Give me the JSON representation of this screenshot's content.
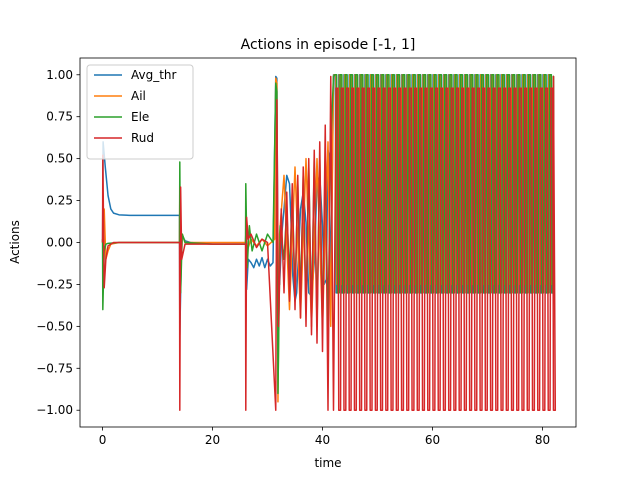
{
  "chart_data": {
    "type": "line",
    "title": "Actions in episode [-1, 1]",
    "xlabel": "time",
    "ylabel": "Actions",
    "xlim": [
      -4.1,
      86.1
    ],
    "ylim": [
      -1.1,
      1.1
    ],
    "x_ticks": [
      0,
      20,
      40,
      60,
      80
    ],
    "x_tick_labels": [
      "0",
      "20",
      "40",
      "60",
      "80"
    ],
    "y_ticks": [
      -1.0,
      -0.75,
      -0.5,
      -0.25,
      0.0,
      0.25,
      0.5,
      0.75,
      1.0
    ],
    "y_tick_labels": [
      "−1.00",
      "−0.75",
      "−0.50",
      "−0.25",
      "0.00",
      "0.25",
      "0.50",
      "0.75",
      "1.00"
    ],
    "grid": false,
    "legend_position": "top-left",
    "series": [
      {
        "name": "Avg_thr",
        "color": "#1f77b4",
        "points": [
          [
            0,
            0
          ],
          [
            0.1,
            0.6
          ],
          [
            0.5,
            0.45
          ],
          [
            1,
            0.28
          ],
          [
            1.5,
            0.2
          ],
          [
            2,
            0.175
          ],
          [
            3,
            0.165
          ],
          [
            5,
            0.162
          ],
          [
            8,
            0.162
          ],
          [
            11,
            0.162
          ],
          [
            14,
            0.162
          ],
          [
            14.05,
            -0.55
          ],
          [
            14.2,
            -0.3
          ],
          [
            14.4,
            0.05
          ],
          [
            15,
            0.01
          ],
          [
            16,
            0
          ],
          [
            20,
            -0.01
          ],
          [
            26,
            -0.01
          ],
          [
            26.05,
            0.05
          ],
          [
            26.2,
            -0.28
          ],
          [
            26.5,
            -0.1
          ],
          [
            27,
            -0.12
          ],
          [
            27.5,
            -0.15
          ],
          [
            28,
            -0.1
          ],
          [
            28.5,
            -0.14
          ],
          [
            29,
            -0.09
          ],
          [
            29.5,
            -0.15
          ],
          [
            30,
            -0.1
          ],
          [
            30.5,
            -0.14
          ],
          [
            31,
            -0.12
          ],
          [
            31.5,
            0.99
          ],
          [
            31.7,
            0.98
          ],
          [
            31.9,
            -0.2
          ],
          [
            32.2,
            -0.25
          ],
          [
            32.6,
            0.05
          ],
          [
            33,
            0.2
          ],
          [
            33.5,
            0.4
          ],
          [
            34,
            0.35
          ],
          [
            34.3,
            0.1
          ],
          [
            34.6,
            -0.2
          ],
          [
            35,
            -0.35
          ],
          [
            35.3,
            -0.3
          ],
          [
            35.6,
            -0.1
          ],
          [
            36,
            0.2
          ],
          [
            36.5,
            0.3
          ],
          [
            37,
            0.12
          ],
          [
            37.5,
            -0.3
          ],
          [
            38,
            -0.32
          ],
          [
            38.5,
            -0.12
          ],
          [
            39,
            0.35
          ],
          [
            39.5,
            0.4
          ],
          [
            40,
            0.1
          ],
          [
            40.3,
            -0.25
          ],
          [
            40.7,
            -0.22
          ],
          [
            41,
            0.55
          ],
          [
            41.2,
            0.52
          ],
          [
            41.5,
            -0.3
          ],
          [
            42,
            0.99
          ],
          [
            82,
            0.99
          ]
        ]
      },
      {
        "name": "Ail",
        "color": "#ff7f0e",
        "points": [
          [
            0,
            0
          ],
          [
            0.1,
            0.02
          ],
          [
            0.3,
            0.2
          ],
          [
            0.6,
            -0.1
          ],
          [
            1,
            -0.05
          ],
          [
            1.5,
            -0.01
          ],
          [
            3,
            0
          ],
          [
            14,
            0
          ],
          [
            14.05,
            0.3
          ],
          [
            14.2,
            -0.2
          ],
          [
            14.5,
            0.05
          ],
          [
            15,
            0
          ],
          [
            26,
            0
          ],
          [
            26.05,
            0.05
          ],
          [
            26.3,
            -0.05
          ],
          [
            27,
            0.02
          ],
          [
            28,
            -0.02
          ],
          [
            29,
            0.02
          ],
          [
            30,
            -0.02
          ],
          [
            31.3,
            0.02
          ],
          [
            31.5,
            0.98
          ],
          [
            31.7,
            0.95
          ],
          [
            31.9,
            -0.95
          ],
          [
            32.2,
            0.05
          ],
          [
            33,
            0.4
          ],
          [
            34,
            -0.4
          ],
          [
            35,
            0.45
          ],
          [
            36,
            -0.45
          ],
          [
            37,
            0.5
          ],
          [
            38,
            -0.5
          ],
          [
            39,
            0.5
          ],
          [
            40,
            -0.5
          ],
          [
            41,
            0.6
          ],
          [
            41.5,
            -0.5
          ],
          [
            42,
            0.99
          ],
          [
            82,
            0.99
          ]
        ]
      },
      {
        "name": "Ele",
        "color": "#2ca02c",
        "points": [
          [
            0,
            0.02
          ],
          [
            0.05,
            -0.4
          ],
          [
            0.3,
            -0.05
          ],
          [
            0.6,
            -0.01
          ],
          [
            1,
            -0.005
          ],
          [
            3,
            0
          ],
          [
            14,
            0
          ],
          [
            14.05,
            0.48
          ],
          [
            14.2,
            -0.3
          ],
          [
            14.5,
            0.05
          ],
          [
            15,
            0
          ],
          [
            20,
            -0.01
          ],
          [
            26,
            -0.01
          ],
          [
            26.05,
            0.35
          ],
          [
            26.3,
            -0.15
          ],
          [
            26.7,
            0.1
          ],
          [
            27.2,
            -0.05
          ],
          [
            28,
            0.05
          ],
          [
            29,
            -0.05
          ],
          [
            30,
            0.05
          ],
          [
            31,
            0
          ],
          [
            31.5,
            0.95
          ],
          [
            31.7,
            0.9
          ],
          [
            31.9,
            -0.9
          ],
          [
            32.3,
            0.1
          ],
          [
            33,
            -0.1
          ],
          [
            33.5,
            0.2
          ],
          [
            34,
            -0.2
          ],
          [
            34.5,
            0.3
          ],
          [
            35,
            -0.3
          ],
          [
            35.5,
            0.35
          ],
          [
            36,
            -0.35
          ],
          [
            36.5,
            0.4
          ],
          [
            37,
            -0.4
          ],
          [
            37.5,
            0.45
          ],
          [
            38,
            -0.45
          ],
          [
            38.5,
            0.5
          ],
          [
            39,
            -0.5
          ],
          [
            39.5,
            0.5
          ],
          [
            40,
            -0.5
          ],
          [
            40.5,
            0.5
          ],
          [
            41,
            -0.5
          ],
          [
            41.5,
            0.6
          ],
          [
            42,
            0.99
          ],
          [
            82,
            0.99
          ]
        ]
      },
      {
        "name": "Rud",
        "color": "#d62728",
        "points": [
          [
            0,
            0
          ],
          [
            0.05,
            0.52
          ],
          [
            0.3,
            -0.27
          ],
          [
            0.6,
            -0.1
          ],
          [
            1,
            -0.02
          ],
          [
            2,
            0
          ],
          [
            14,
            0
          ],
          [
            14.05,
            -1.0
          ],
          [
            14.2,
            0.33
          ],
          [
            14.4,
            -0.1
          ],
          [
            15,
            -0.01
          ],
          [
            20,
            -0.01
          ],
          [
            26,
            -0.01
          ],
          [
            26.05,
            -1.0
          ],
          [
            26.2,
            0.15
          ],
          [
            26.5,
            0.02
          ],
          [
            27,
            0.05
          ],
          [
            28,
            -0.03
          ],
          [
            29,
            0.02
          ],
          [
            30,
            0
          ],
          [
            31.5,
            -1.0
          ],
          [
            31.7,
            0.85
          ],
          [
            32,
            -0.5
          ],
          [
            32.5,
            0.2
          ],
          [
            33,
            -0.3
          ],
          [
            33.5,
            0.3
          ],
          [
            34,
            -0.35
          ],
          [
            34.5,
            0.35
          ],
          [
            35,
            -0.4
          ],
          [
            35.5,
            0.4
          ],
          [
            36,
            -0.45
          ],
          [
            36.5,
            0.45
          ],
          [
            37,
            -0.5
          ],
          [
            37.5,
            0.5
          ],
          [
            38,
            -0.55
          ],
          [
            38.5,
            0.55
          ],
          [
            39,
            -0.6
          ],
          [
            39.5,
            0.6
          ],
          [
            40,
            -0.65
          ],
          [
            40.5,
            0.7
          ],
          [
            41,
            -1.0
          ],
          [
            41.5,
            0.99
          ],
          [
            42,
            -1.0
          ],
          [
            82,
            -1.0
          ]
        ]
      }
    ],
    "dense_region": {
      "x_start": 42,
      "x_end": 82,
      "cycles": 42,
      "high": 1.0,
      "low": -1.0,
      "avg_thr_low": -0.3,
      "ail_low": -0.25,
      "ele_low": -0.3,
      "rud_low": -1.0,
      "rud_high": 0.92
    }
  }
}
